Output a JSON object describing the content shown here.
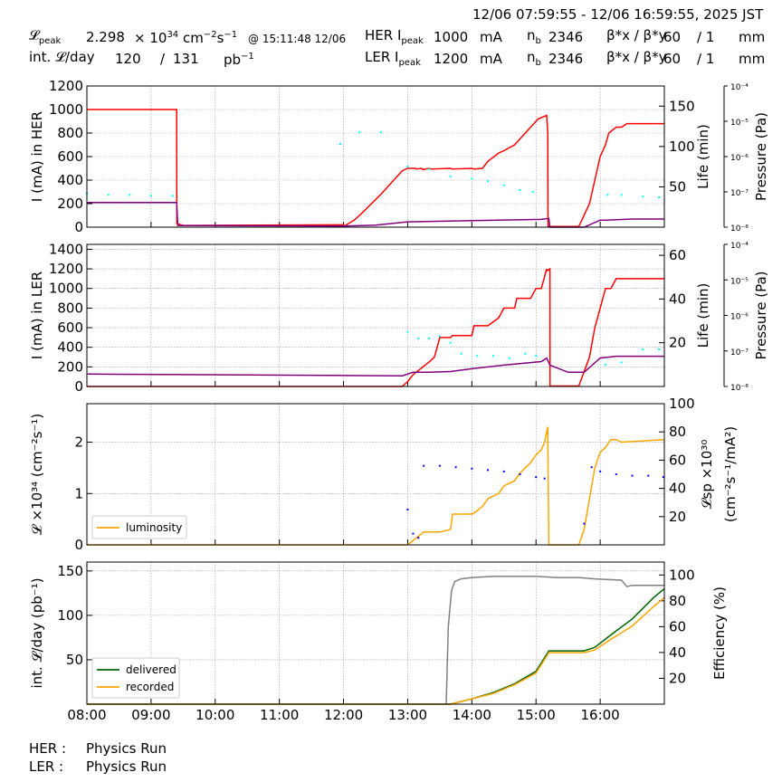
{
  "header": {
    "date_range": "12/06 07:59:55 - 12/06 16:59:55, 2025 JST",
    "lpeak_label": "𝓛",
    "lpeak_sub": "peak",
    "lpeak_value": "2.298",
    "lpeak_unit_pre": "× 10",
    "lpeak_unit_exp": "34",
    "lpeak_unit_post": "cm",
    "lpeak_unit_exp2": "−2",
    "lpeak_unit_post2": "s",
    "lpeak_unit_exp3": "−1",
    "lpeak_time": "@ 15:11:48 12/06",
    "intl_label": "int. 𝓛/day",
    "intl_value1": "120",
    "intl_slash": "/",
    "intl_value2": "131",
    "intl_unit": "pb",
    "intl_unit_exp": "−1",
    "her_label": "HER I",
    "her_sub": "peak",
    "her_value": "1000",
    "ler_label": "LER I",
    "ler_sub": "peak",
    "ler_value": "1200",
    "current_unit": "mA",
    "nb_label": "n",
    "nb_sub": "b",
    "her_nb": "2346",
    "ler_nb": "2346",
    "beta_label": "β*x / β*y",
    "her_beta_x": "60",
    "her_beta_y": "/ 1",
    "ler_beta_x": "60",
    "ler_beta_y": "/ 1",
    "beta_unit": "mm"
  },
  "footer": {
    "her_status_label": "HER :",
    "her_status": "Physics Run",
    "ler_status_label": "LER :",
    "ler_status": "Physics Run"
  },
  "colors": {
    "current": "#ff0000",
    "life": "#00ffff",
    "pressure": "#800080",
    "specific_lumi": "#0000ff",
    "luminosity": "#ffa500",
    "delivered": "#006400",
    "recorded": "#ffa500",
    "efficiency": "#808080"
  },
  "chart_data": [
    {
      "type": "line",
      "name": "her",
      "ylabel": "I (mA) in HER",
      "y2label": "Life (min)",
      "y3label": "Pressure (Pa)",
      "ylim": [
        0,
        1200
      ],
      "yticks": [
        0,
        200,
        400,
        600,
        800,
        1000,
        1200
      ],
      "y2lim": [
        0,
        175
      ],
      "y2ticks": [
        50,
        100,
        150
      ],
      "y3lim": [
        -8,
        -4
      ],
      "y3ticks": [
        "10⁻⁸",
        "10⁻⁷",
        "10⁻⁶",
        "10⁻⁵",
        "10⁻⁴"
      ],
      "xlim": [
        "08:00",
        "17:00"
      ],
      "series": [
        {
          "key": "current",
          "axis": "y",
          "x": [
            "08:00",
            "09:24",
            "09:24.1",
            "09:30",
            "12:00",
            "12:00.1",
            "12:10",
            "12:15",
            "12:35",
            "12:55",
            "13:00",
            "13:07",
            "13:08",
            "13:13",
            "13:14",
            "13:20",
            "13:22",
            "13:40",
            "13:42",
            "14:00",
            "14:02",
            "14:10",
            "14:15",
            "14:25",
            "14:30",
            "14:40",
            "14:45",
            "14:50",
            "14:55",
            "15:02",
            "15:10",
            "15:11",
            "15:11.2",
            "15:30",
            "15:40",
            "15:50",
            "15:55",
            "16:00",
            "16:05",
            "16:08",
            "16:15",
            "16:20",
            "16:25",
            "16:30",
            "16:35",
            "17:00"
          ],
          "y": [
            1000,
            1000,
            30,
            15,
            20,
            5,
            60,
            100,
            280,
            480,
            500,
            500,
            495,
            500,
            490,
            500,
            495,
            500,
            495,
            500,
            495,
            500,
            560,
            630,
            650,
            700,
            750,
            800,
            850,
            920,
            950,
            800,
            5,
            5,
            5,
            200,
            400,
            600,
            700,
            800,
            850,
            850,
            880,
            880,
            880,
            880
          ]
        },
        {
          "key": "pressure",
          "axis": "y3",
          "x": [
            "08:00",
            "09:24",
            "09:25",
            "12:00",
            "12:30",
            "13:00",
            "15:05",
            "15:12",
            "15:13",
            "15:45",
            "16:00",
            "16:05",
            "16:30",
            "17:00"
          ],
          "y": [
            -7.3,
            -7.3,
            -7.95,
            -7.97,
            -7.94,
            -7.85,
            -7.78,
            -7.75,
            -8,
            -8,
            -7.8,
            -7.8,
            -7.77,
            -7.77
          ]
        },
        {
          "key": "life",
          "axis": "y2",
          "scatter": true,
          "x": [
            "08:00",
            "08:20",
            "08:40",
            "09:00",
            "09:20",
            "11:57",
            "12:15",
            "12:35",
            "13:00",
            "13:20",
            "13:40",
            "14:00",
            "14:15",
            "14:30",
            "14:45",
            "14:57",
            "16:07",
            "16:20",
            "16:40",
            "16:55"
          ],
          "y": [
            42,
            40,
            40,
            39,
            39,
            103,
            118,
            118,
            75,
            72,
            63,
            60,
            57,
            52,
            46,
            44,
            40,
            40,
            38,
            37
          ]
        }
      ]
    },
    {
      "type": "line",
      "name": "ler",
      "ylabel": "I (mA) in LER",
      "y2label": "Life (min)",
      "y3label": "Pressure (Pa)",
      "ylim": [
        0,
        1450
      ],
      "yticks": [
        0,
        200,
        400,
        600,
        800,
        1000,
        1200,
        1400
      ],
      "y2lim": [
        0,
        65
      ],
      "y2ticks": [
        20,
        40,
        60
      ],
      "y3lim": [
        -8,
        -4
      ],
      "y3ticks": [
        "10⁻⁸",
        "10⁻⁷",
        "10⁻⁶",
        "10⁻⁵",
        "10⁻⁴"
      ],
      "xlim": [
        "08:00",
        "17:00"
      ],
      "series": [
        {
          "key": "current",
          "axis": "y",
          "x": [
            "08:00",
            "12:55",
            "13:00",
            "13:05",
            "13:20",
            "13:25",
            "13:30",
            "13:40",
            "13:42",
            "14:00",
            "14:02",
            "14:15",
            "14:25",
            "14:30",
            "14:40",
            "14:42",
            "14:55",
            "15:00",
            "15:05",
            "15:10",
            "15:10.1",
            "15:13",
            "15:13.1",
            "15:20",
            "15:40",
            "15:50",
            "15:55",
            "16:00",
            "16:05",
            "16:10",
            "16:15",
            "16:20",
            "17:00"
          ],
          "y": [
            0,
            0,
            50,
            120,
            250,
            300,
            500,
            500,
            520,
            520,
            620,
            620,
            700,
            800,
            800,
            900,
            900,
            1000,
            1000,
            1200,
            1180,
            1200,
            5,
            5,
            5,
            300,
            600,
            800,
            1000,
            1000,
            1100,
            1100,
            1100
          ]
        },
        {
          "key": "pressure",
          "axis": "y3",
          "x": [
            "08:00",
            "12:55",
            "13:05",
            "13:20",
            "13:40",
            "14:00",
            "14:30",
            "15:05",
            "15:10",
            "15:13",
            "15:30",
            "15:45",
            "16:00",
            "16:15",
            "17:00"
          ],
          "y": [
            -7.65,
            -7.7,
            -7.6,
            -7.6,
            -7.58,
            -7.5,
            -7.4,
            -7.3,
            -7.2,
            -7.4,
            -7.6,
            -7.6,
            -7.2,
            -7.15,
            -7.15
          ]
        },
        {
          "key": "life",
          "axis": "y2",
          "scatter": true,
          "x": [
            "13:00",
            "13:10",
            "13:20",
            "13:30",
            "13:40",
            "13:50",
            "14:05",
            "14:20",
            "14:35",
            "14:50",
            "15:00",
            "16:05",
            "16:20",
            "16:40",
            "16:55"
          ],
          "y": [
            25,
            22,
            22,
            23,
            20,
            15,
            14,
            14,
            13,
            15,
            14,
            10,
            11,
            17,
            17
          ]
        }
      ]
    },
    {
      "type": "line",
      "name": "luminosity",
      "ylabel": "𝓛 ×10³⁴ (cm⁻²s⁻¹)",
      "y2label": "𝓛sp ×10³⁰",
      "y2label_b": "(cm⁻²s⁻¹/mA²)",
      "ylim": [
        0,
        2.75
      ],
      "yticks": [
        0,
        1,
        2
      ],
      "y2lim": [
        0,
        100
      ],
      "y2ticks": [
        20,
        40,
        60,
        80,
        100
      ],
      "xlim": [
        "08:00",
        "17:00"
      ],
      "legend": [
        "luminosity"
      ],
      "legend_position": "lower left",
      "series": [
        {
          "key": "luminosity",
          "axis": "y",
          "name": "luminosity",
          "x": [
            "08:00",
            "13:00",
            "13:15",
            "13:30",
            "13:40",
            "13:42",
            "14:00",
            "14:02",
            "14:10",
            "14:15",
            "14:25",
            "14:30",
            "14:40",
            "14:45",
            "14:55",
            "15:00",
            "15:05",
            "15:08",
            "15:11",
            "15:11.5",
            "15:12",
            "15:15",
            "15:40",
            "15:45",
            "15:50",
            "15:55",
            "16:00",
            "16:05",
            "16:10",
            "16:15",
            "16:20",
            "17:00"
          ],
          "y": [
            0,
            0,
            0.25,
            0.25,
            0.3,
            0.6,
            0.6,
            0.62,
            0.75,
            0.9,
            1.0,
            1.15,
            1.25,
            1.4,
            1.6,
            1.75,
            1.85,
            2.0,
            2.3,
            1.0,
            0,
            0,
            0,
            0.3,
            0.9,
            1.5,
            1.8,
            1.9,
            2.05,
            2.05,
            2.0,
            2.05
          ]
        },
        {
          "key": "specific_lumi",
          "axis": "y2",
          "scatter": true,
          "x": [
            "13:00",
            "13:05",
            "13:10",
            "13:15",
            "13:30",
            "13:45",
            "14:00",
            "14:15",
            "14:30",
            "14:45",
            "15:00",
            "15:08",
            "15:45",
            "15:52",
            "16:00",
            "16:15",
            "16:30",
            "16:45",
            "16:59"
          ],
          "y": [
            25,
            8,
            5,
            56,
            56,
            55,
            54,
            53,
            52,
            50,
            48,
            47,
            15,
            55,
            52,
            50,
            49,
            49,
            48
          ]
        }
      ]
    },
    {
      "type": "line",
      "name": "integrated",
      "ylabel": "int. 𝓛/day (pb⁻¹)",
      "y2label": "Efficiency (%)",
      "ylim": [
        0,
        160
      ],
      "yticks": [
        50,
        100,
        150
      ],
      "y2lim": [
        0,
        110
      ],
      "y2ticks": [
        20,
        40,
        60,
        80,
        100
      ],
      "xlim": [
        "08:00",
        "17:00"
      ],
      "xticks": [
        "08:00",
        "09:00",
        "10:00",
        "11:00",
        "12:00",
        "13:00",
        "14:00",
        "15:00",
        "16:00"
      ],
      "legend": [
        "delivered",
        "recorded"
      ],
      "legend_position": "lower left",
      "series": [
        {
          "key": "delivered",
          "axis": "y",
          "name": "delivered",
          "x": [
            "08:00",
            "13:40",
            "14:00",
            "14:20",
            "14:40",
            "15:00",
            "15:12",
            "15:45",
            "15:55",
            "16:10",
            "16:30",
            "16:50",
            "17:00"
          ],
          "y": [
            0,
            0,
            6,
            13,
            23,
            37,
            60,
            60,
            64,
            78,
            96,
            120,
            130
          ]
        },
        {
          "key": "recorded",
          "axis": "y",
          "name": "recorded",
          "x": [
            "08:00",
            "13:40",
            "14:00",
            "14:20",
            "14:40",
            "15:00",
            "15:12",
            "15:45",
            "15:55",
            "16:10",
            "16:30",
            "16:50",
            "17:00"
          ],
          "y": [
            0,
            0,
            6,
            12,
            22,
            35,
            58,
            58,
            61,
            73,
            88,
            110,
            120
          ]
        },
        {
          "key": "efficiency",
          "axis": "y2",
          "x": [
            "13:36",
            "13:38",
            "13:41",
            "13:44",
            "13:50",
            "14:00",
            "14:20",
            "14:40",
            "15:00",
            "15:20",
            "15:40",
            "15:55",
            "16:20",
            "16:25",
            "16:30",
            "17:00"
          ],
          "y": [
            0,
            60,
            88,
            95,
            97,
            98,
            99,
            99,
            99,
            98,
            98,
            97,
            96,
            91,
            92,
            92
          ]
        }
      ]
    }
  ]
}
